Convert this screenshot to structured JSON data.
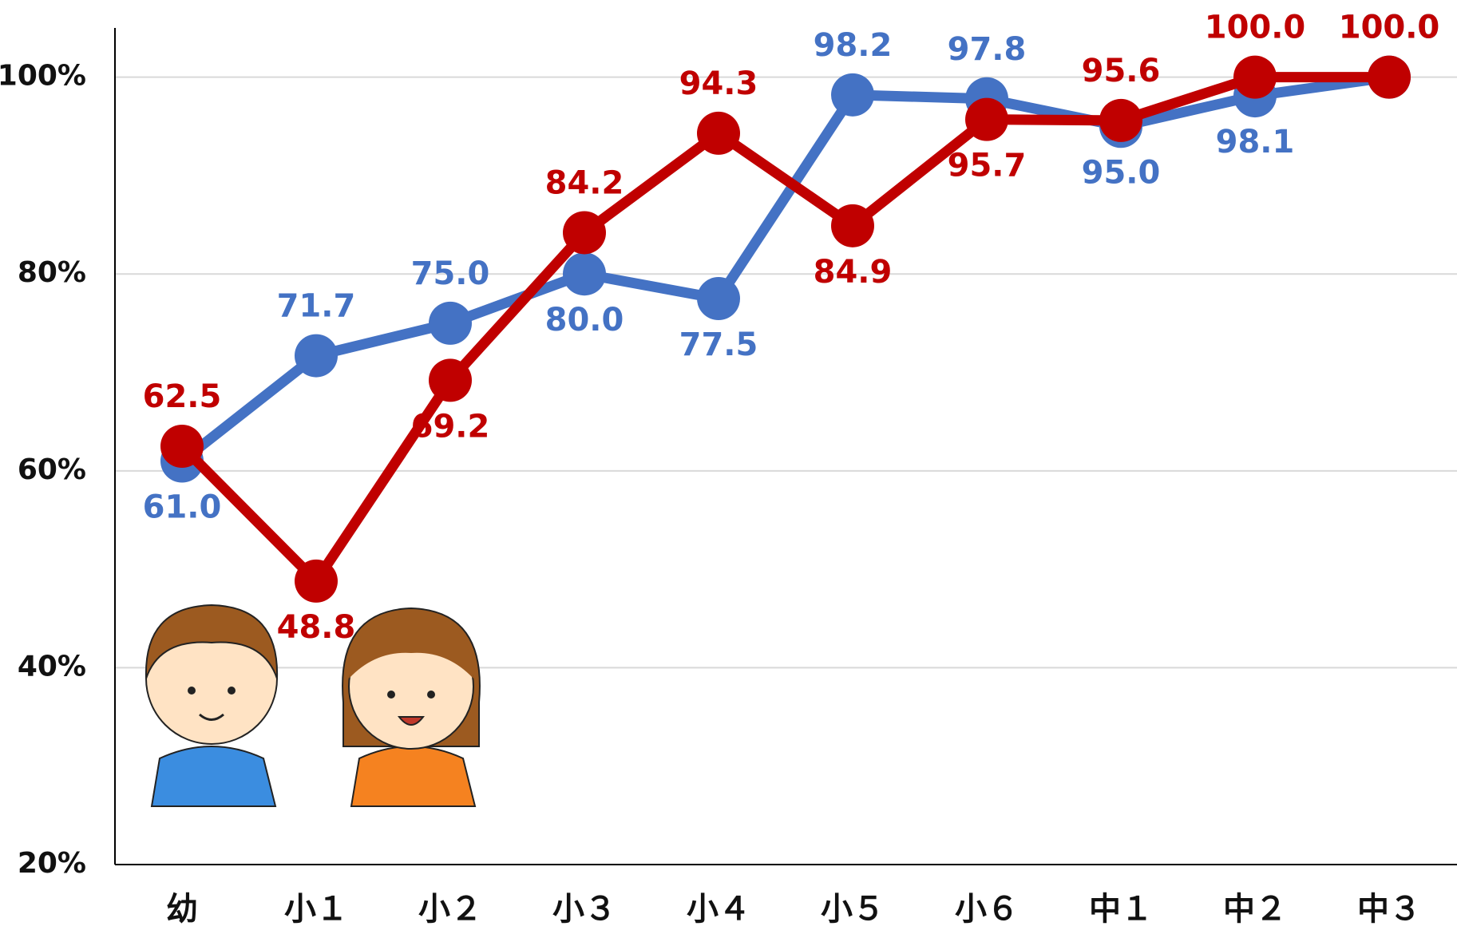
{
  "chart_data": {
    "type": "line",
    "categories": [
      "幼",
      "小１",
      "小２",
      "小３",
      "小４",
      "小５",
      "小６",
      "中１",
      "中２",
      "中３"
    ],
    "series": [
      {
        "color": "#4472c4",
        "values": [
          61.0,
          71.7,
          75.0,
          80.0,
          77.5,
          98.2,
          97.8,
          95.0,
          98.1,
          100.0
        ],
        "value_labels": [
          "61.0",
          "71.7",
          "75.0",
          "80.0",
          "77.5",
          "98.2",
          "97.8",
          "95.0",
          "98.1",
          "100.0"
        ]
      },
      {
        "color": "#c00000",
        "values": [
          62.5,
          48.8,
          69.2,
          84.2,
          94.3,
          84.9,
          95.7,
          95.6,
          100.0,
          100.0
        ],
        "value_labels": [
          "62.5",
          "48.8",
          "69.2",
          "84.2",
          "94.3",
          "84.9",
          "95.7",
          "95.6",
          "100.0",
          "100.0"
        ]
      }
    ],
    "ylim": [
      20,
      105
    ],
    "yticks": [
      {
        "value": 20,
        "label": "20%"
      },
      {
        "value": 40,
        "label": "40%"
      },
      {
        "value": 60,
        "label": "60%"
      },
      {
        "value": 80,
        "label": "80%"
      },
      {
        "value": 100,
        "label": "100%"
      }
    ],
    "grid": true
  }
}
